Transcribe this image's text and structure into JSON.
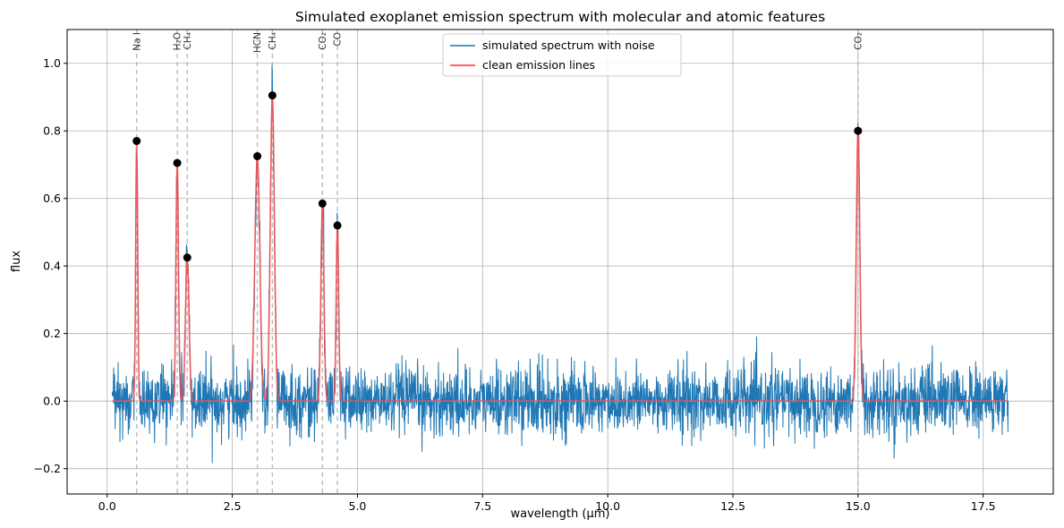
{
  "chart_data": {
    "type": "line",
    "title": "Simulated exoplanet emission spectrum with molecular and atomic features",
    "xlabel": "wavelength (µm)",
    "ylabel": "flux",
    "xlim": [
      -0.8,
      18.9
    ],
    "ylim": [
      -0.275,
      1.1
    ],
    "xticks": [
      0.0,
      2.5,
      5.0,
      7.5,
      10.0,
      12.5,
      15.0,
      17.5
    ],
    "xtick_labels": [
      "0.0",
      "2.5",
      "5.0",
      "7.5",
      "10.0",
      "12.5",
      "15.0",
      "17.5"
    ],
    "yticks": [
      -0.2,
      0.0,
      0.2,
      0.4,
      0.6,
      0.8,
      1.0
    ],
    "ytick_labels": [
      "−0.2",
      "0.0",
      "0.2",
      "0.4",
      "0.6",
      "0.8",
      "1.0"
    ],
    "grid": true,
    "legend": "top-center",
    "x_range": [
      0.1,
      18.0
    ],
    "noise_amplitude": 0.05,
    "series": [
      {
        "name": "simulated spectrum with noise",
        "color": "#1f77b4"
      },
      {
        "name": "clean emission lines",
        "color": "#ff4d4d"
      }
    ],
    "lines": [
      {
        "label": "Na I",
        "x": 0.59,
        "peak": 0.77,
        "width": 0.02
      },
      {
        "label": "H₂O",
        "x": 1.4,
        "peak": 0.705,
        "width": 0.025
      },
      {
        "label": "CH₄",
        "x": 1.6,
        "peak": 0.425,
        "width": 0.035
      },
      {
        "label": "HCN",
        "x": 3.0,
        "peak": 0.725,
        "width": 0.05
      },
      {
        "label": "CH₄",
        "x": 3.3,
        "peak": 0.905,
        "width": 0.04
      },
      {
        "label": "CO₂",
        "x": 4.3,
        "peak": 0.585,
        "width": 0.03
      },
      {
        "label": "CO",
        "x": 4.6,
        "peak": 0.52,
        "width": 0.025
      },
      {
        "label": "CO₂",
        "x": 15.0,
        "peak": 0.8,
        "width": 0.035
      }
    ],
    "peak_marker_color": "#000000",
    "feature_marker_color": "#bbbbbb"
  }
}
